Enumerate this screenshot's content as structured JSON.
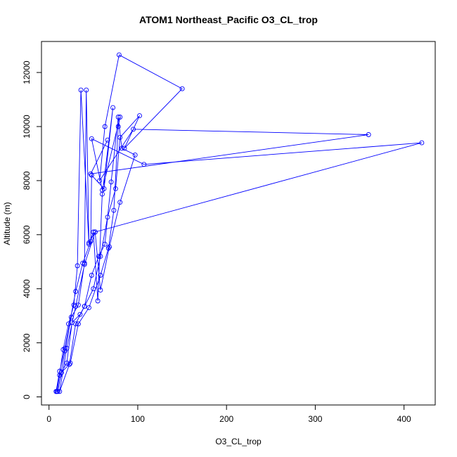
{
  "chart_data": {
    "type": "line",
    "title": "ATOM1 Northeast_Pacific O3_CL_trop",
    "xlabel": "O3_CL_trop",
    "ylabel": "Altitude (m)",
    "xlim": [
      0,
      420
    ],
    "ylim": [
      0,
      12700
    ],
    "x_ticks": [
      0,
      100,
      200,
      300,
      400
    ],
    "y_ticks": [
      0,
      2000,
      4000,
      6000,
      8000,
      10000,
      12000
    ],
    "series_color": "#0000ff",
    "marker": "open-circle",
    "series": [
      {
        "x": [
          8,
          12,
          18,
          30,
          38,
          47,
          48,
          62,
          72,
          60,
          55,
          50,
          45,
          36,
          32,
          28,
          22,
          16,
          9,
          8,
          12,
          20,
          26,
          35,
          40,
          48,
          56,
          63,
          70,
          78,
          82,
          97,
          80,
          68,
          58,
          52,
          45,
          42,
          40,
          33,
          25,
          18,
          10,
          14,
          24,
          33,
          45,
          58,
          67,
          73,
          78,
          80,
          60,
          48,
          107,
          420,
          52,
          40,
          30,
          20,
          12,
          23,
          30,
          40,
          50,
          58,
          66,
          75,
          80,
          102,
          85,
          150,
          79,
          63,
          57,
          95,
          360,
          47,
          66
        ],
        "y": [
          200,
          950,
          1800,
          3900,
          4950,
          5750,
          8200,
          7700,
          10700,
          7500,
          3550,
          6100,
          5650,
          11350,
          4850,
          3400,
          2700,
          1750,
          200,
          200,
          800,
          1250,
          2750,
          3050,
          3350,
          4500,
          5200,
          5650,
          7950,
          10350,
          9200,
          8950,
          7200,
          5550,
          3950,
          6100,
          5700,
          11350,
          4950,
          3400,
          2950,
          1700,
          200,
          900,
          1250,
          2700,
          3300,
          4500,
          5500,
          6900,
          10000,
          10350,
          7650,
          9550,
          8600,
          9400,
          6100,
          4900,
          3350,
          1800,
          200,
          1200,
          2700,
          3350,
          4000,
          5200,
          6650,
          7700,
          9600,
          10400,
          9200,
          11400,
          12650,
          10000,
          8000,
          9900,
          9700,
          8250,
          9500
        ]
      }
    ]
  }
}
